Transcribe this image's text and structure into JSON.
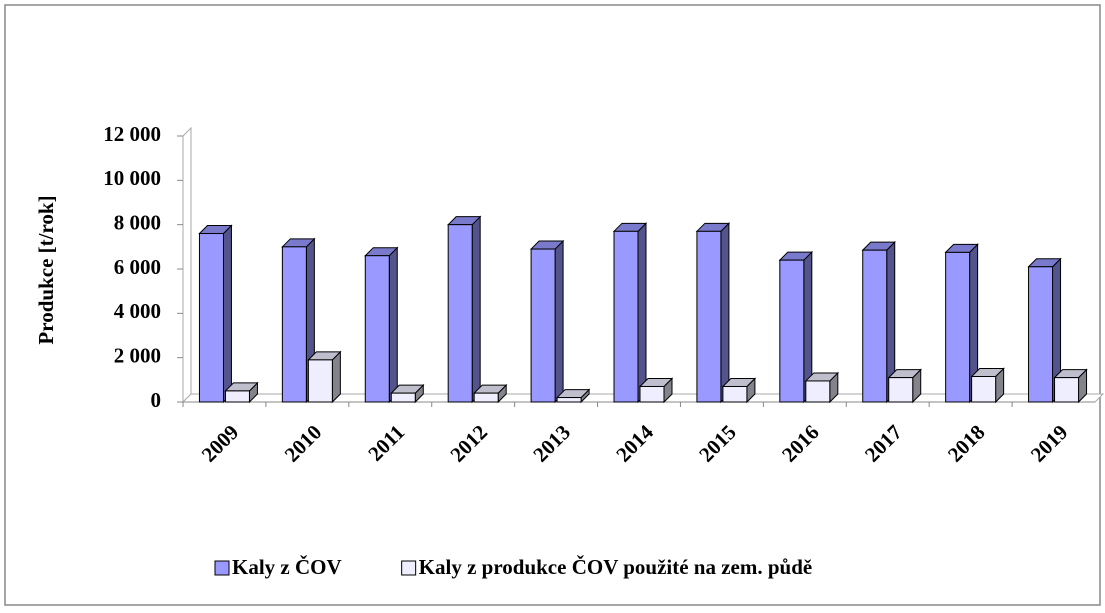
{
  "chart_data": {
    "type": "bar3d",
    "y_label": "Produkce [t/rok]",
    "categories": [
      "2009",
      "2010",
      "2011",
      "2012",
      "2013",
      "2014",
      "2015",
      "2016",
      "2017",
      "2018",
      "2019"
    ],
    "series": [
      {
        "name": "Kaly z ČOV",
        "color": "#9999ff",
        "values": [
          7600,
          7000,
          6600,
          8000,
          6900,
          7700,
          7700,
          6400,
          6850,
          6750,
          6100
        ]
      },
      {
        "name": "Kaly z produkce ČOV použité na zem. půdě",
        "color": "#eeeeff",
        "values": [
          500,
          1900,
          400,
          400,
          200,
          700,
          700,
          950,
          1100,
          1150,
          1100
        ]
      }
    ],
    "ylim": [
      0,
      12000
    ],
    "yticks": [
      {
        "value": 0,
        "label": "0"
      },
      {
        "value": 2000,
        "label": "2 000"
      },
      {
        "value": 4000,
        "label": "4 000"
      },
      {
        "value": 6000,
        "label": "6 000"
      },
      {
        "value": 8000,
        "label": "8 000"
      },
      {
        "value": 10000,
        "label": "10 000"
      },
      {
        "value": 12000,
        "label": "12 000"
      }
    ],
    "grid": false,
    "legend": "bottom"
  }
}
